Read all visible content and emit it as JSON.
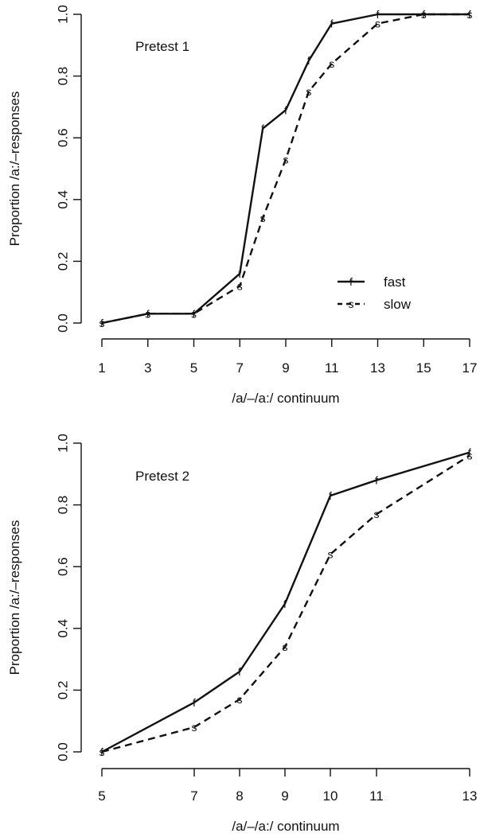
{
  "chart_data": [
    {
      "type": "line",
      "title": "Pretest 1",
      "xlabel": "/a/–/a:/ continuum",
      "ylabel": "Proportion /a:/–responses",
      "xlim": [
        1,
        17
      ],
      "ylim": [
        0,
        1
      ],
      "xticks": [
        "1",
        "3",
        "5",
        "7",
        "9",
        "11",
        "13",
        "15",
        "17"
      ],
      "yticks": [
        "0.0",
        "0.2",
        "0.4",
        "0.6",
        "0.8",
        "1.0"
      ],
      "grid": false,
      "legend": {
        "position": "bottom-right",
        "entries": [
          {
            "marker": "f",
            "label": "fast",
            "style": "solid"
          },
          {
            "marker": "s",
            "label": "slow",
            "style": "dashed"
          }
        ]
      },
      "series": [
        {
          "name": "fast",
          "marker": "f",
          "style": "solid",
          "x": [
            1,
            3,
            5,
            7,
            8,
            9,
            10,
            11,
            13,
            15,
            17
          ],
          "y": [
            0.0,
            0.03,
            0.03,
            0.16,
            0.63,
            0.69,
            0.85,
            0.97,
            1.0,
            1.0,
            1.0
          ]
        },
        {
          "name": "slow",
          "marker": "s",
          "style": "dashed",
          "x": [
            1,
            3,
            5,
            7,
            8,
            9,
            10,
            11,
            13,
            15,
            17
          ],
          "y": [
            0.0,
            0.03,
            0.03,
            0.12,
            0.34,
            0.53,
            0.75,
            0.84,
            0.97,
            1.0,
            1.0
          ]
        }
      ]
    },
    {
      "type": "line",
      "title": "Pretest 2",
      "xlabel": "/a/–/a:/ continuum",
      "ylabel": "Proportion /a:/–responses",
      "xlim": [
        5,
        13
      ],
      "ylim": [
        0,
        1
      ],
      "x_scale": "nonlinear (tick positions as shown)",
      "xticks": [
        "5",
        "7",
        "8",
        "9",
        "10",
        "11",
        "13"
      ],
      "yticks": [
        "0.0",
        "0.2",
        "0.4",
        "0.6",
        "0.8",
        "1.0"
      ],
      "grid": false,
      "series": [
        {
          "name": "fast",
          "marker": "f",
          "style": "solid",
          "x": [
            5,
            7,
            8,
            9,
            10,
            11,
            13
          ],
          "y": [
            0.0,
            0.16,
            0.26,
            0.48,
            0.83,
            0.88,
            0.97
          ]
        },
        {
          "name": "slow",
          "marker": "s",
          "style": "dashed",
          "x": [
            5,
            7,
            8,
            9,
            10,
            11,
            13
          ],
          "y": [
            0.0,
            0.08,
            0.17,
            0.34,
            0.64,
            0.77,
            0.96
          ]
        }
      ]
    }
  ]
}
